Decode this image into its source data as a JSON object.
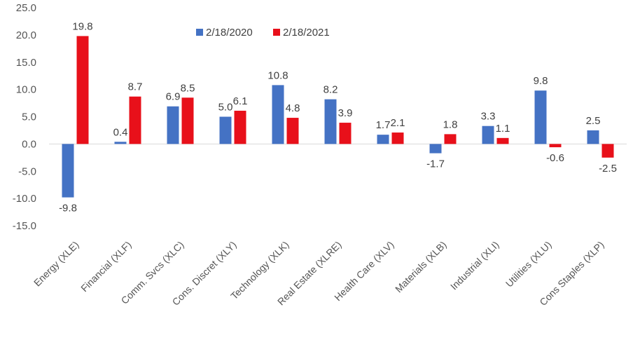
{
  "chart_data": {
    "type": "bar",
    "title": "",
    "xlabel": "",
    "ylabel": "",
    "ylim": [
      -15,
      25
    ],
    "yticks": [
      "25.0",
      "20.0",
      "15.0",
      "10.0",
      "5.0",
      "0.0",
      "-5.0",
      "-10.0",
      "-15.0"
    ],
    "ytick_values": [
      25,
      20,
      15,
      10,
      5,
      0,
      -5,
      -10,
      -15
    ],
    "grid": false,
    "legend": "top-center",
    "categories": [
      "Energy (XLE)",
      "Financial (XLF)",
      "Comm. Svcs (XLC)",
      "Cons. Discret (XLY)",
      "Technology (XLK)",
      "Real Estate (XLRE)",
      "Health Care (XLV)",
      "Materials (XLB)",
      "Industrial (XLI)",
      "Utilities (XLU)",
      "Cons Staples (XLP)"
    ],
    "series": [
      {
        "name": "2/18/2020",
        "color": "#4472C4",
        "values": [
          -9.8,
          0.4,
          6.9,
          5.0,
          10.8,
          8.2,
          1.7,
          -1.7,
          3.3,
          9.8,
          2.5
        ],
        "labels": [
          "-9.8",
          "0.4",
          "6.9",
          "5.0",
          "10.8",
          "8.2",
          "1.7",
          "-1.7",
          "3.3",
          "9.8",
          "2.5"
        ]
      },
      {
        "name": "2/18/2021",
        "color": "#E8101A",
        "values": [
          19.8,
          8.7,
          8.5,
          6.1,
          4.8,
          3.9,
          2.1,
          1.8,
          1.1,
          -0.6,
          -2.5
        ],
        "labels": [
          "19.8",
          "8.7",
          "8.5",
          "6.1",
          "4.8",
          "3.9",
          "2.1",
          "1.8",
          "1.1",
          "-0.6",
          "-2.5"
        ]
      }
    ]
  }
}
